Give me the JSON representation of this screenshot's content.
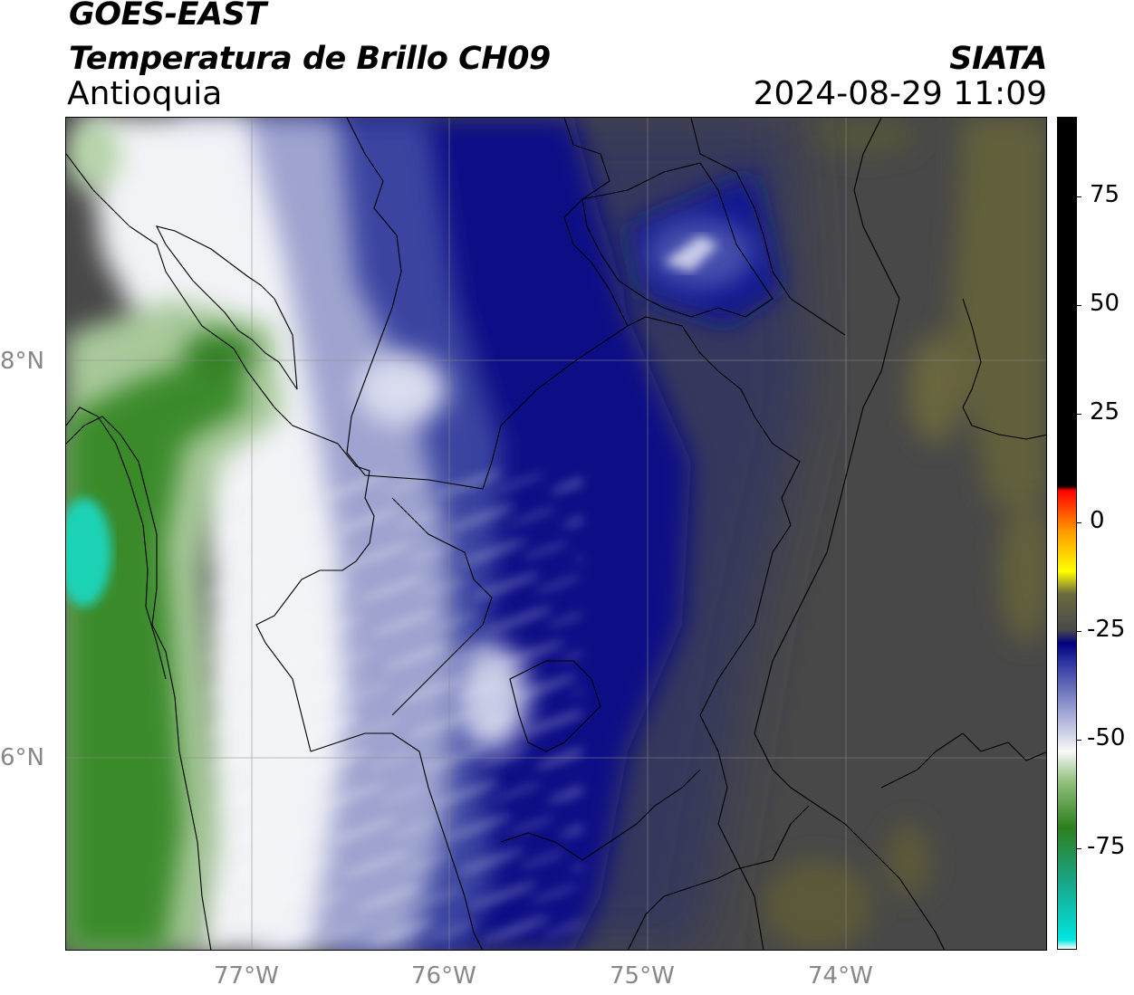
{
  "header": {
    "satellite": "GOES-EAST",
    "product": "Temperatura de Brillo CH09",
    "region": "Antioquia",
    "organization": "SIATA",
    "datetime": "2024-08-29 11:09"
  },
  "map": {
    "lat_labels": [
      "8°N",
      "6°N"
    ],
    "lon_labels": [
      "77°W",
      "76°W",
      "75°W",
      "74°W"
    ],
    "field_colors": {
      "cold_cyan": "#1fd3b6",
      "green": "#3b8a2a",
      "light_green": "#a9c99b",
      "white": "#f4f4f8",
      "light_blue": "#9ea3cf",
      "blue": "#3a44a0",
      "navy": "#0b0f86",
      "dark_slate": "#33365a",
      "gray": "#4a4a4a",
      "olive": "#6f6d3c"
    }
  },
  "colorbar": {
    "tick_labels": [
      "75",
      "50",
      "25",
      "0",
      "-25",
      "-50",
      "-75"
    ],
    "range": [
      -95,
      90
    ],
    "stops": [
      {
        "value": -95,
        "color": "#ffffff"
      },
      {
        "value": -93,
        "color": "#00e6e0"
      },
      {
        "value": -80,
        "color": "#1aa588"
      },
      {
        "value": -68,
        "color": "#2d7f1e"
      },
      {
        "value": -58,
        "color": "#8fbf7a"
      },
      {
        "value": -51,
        "color": "#f8f8f8"
      },
      {
        "value": -42,
        "color": "#9ca2d2"
      },
      {
        "value": -31,
        "color": "#2a33a0"
      },
      {
        "value": -27,
        "color": "#000080"
      },
      {
        "value": -24,
        "color": "#4a4a4a"
      },
      {
        "value": -16,
        "color": "#6a6a40"
      },
      {
        "value": -11,
        "color": "#ffff00"
      },
      {
        "value": -2,
        "color": "#ff9900"
      },
      {
        "value": 7,
        "color": "#ff0000"
      },
      {
        "value": 8,
        "color": "#000000"
      },
      {
        "value": 90,
        "color": "#000000"
      }
    ]
  }
}
